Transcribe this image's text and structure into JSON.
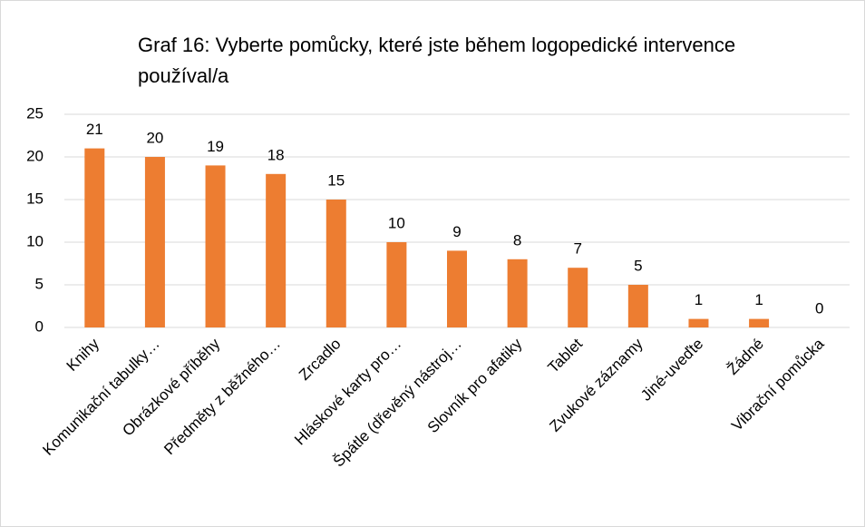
{
  "chart_data": {
    "type": "bar",
    "title": "Graf 16: Vyberte pomůcky, které jste během logopedické intervence používal/a",
    "categories": [
      "Knihy",
      "Komunikační tabulky…",
      "Obrázkové příběhy",
      "Předměty z běžného…",
      "Zrcadlo",
      "Hláskové karty pro…",
      "Špátle (dřevěný nástroj…",
      "Slovník pro afatiky",
      "Tablet",
      "Zvukové záznamy",
      "Jiné-uveďte",
      "Žádné",
      "Vibrační pomůcka"
    ],
    "values": [
      21,
      20,
      19,
      18,
      15,
      10,
      9,
      8,
      7,
      5,
      1,
      1,
      0
    ],
    "color": "#ed7d31",
    "ylim": [
      0,
      25
    ],
    "yticks": [
      0,
      5,
      10,
      15,
      20,
      25
    ],
    "grid": true
  }
}
